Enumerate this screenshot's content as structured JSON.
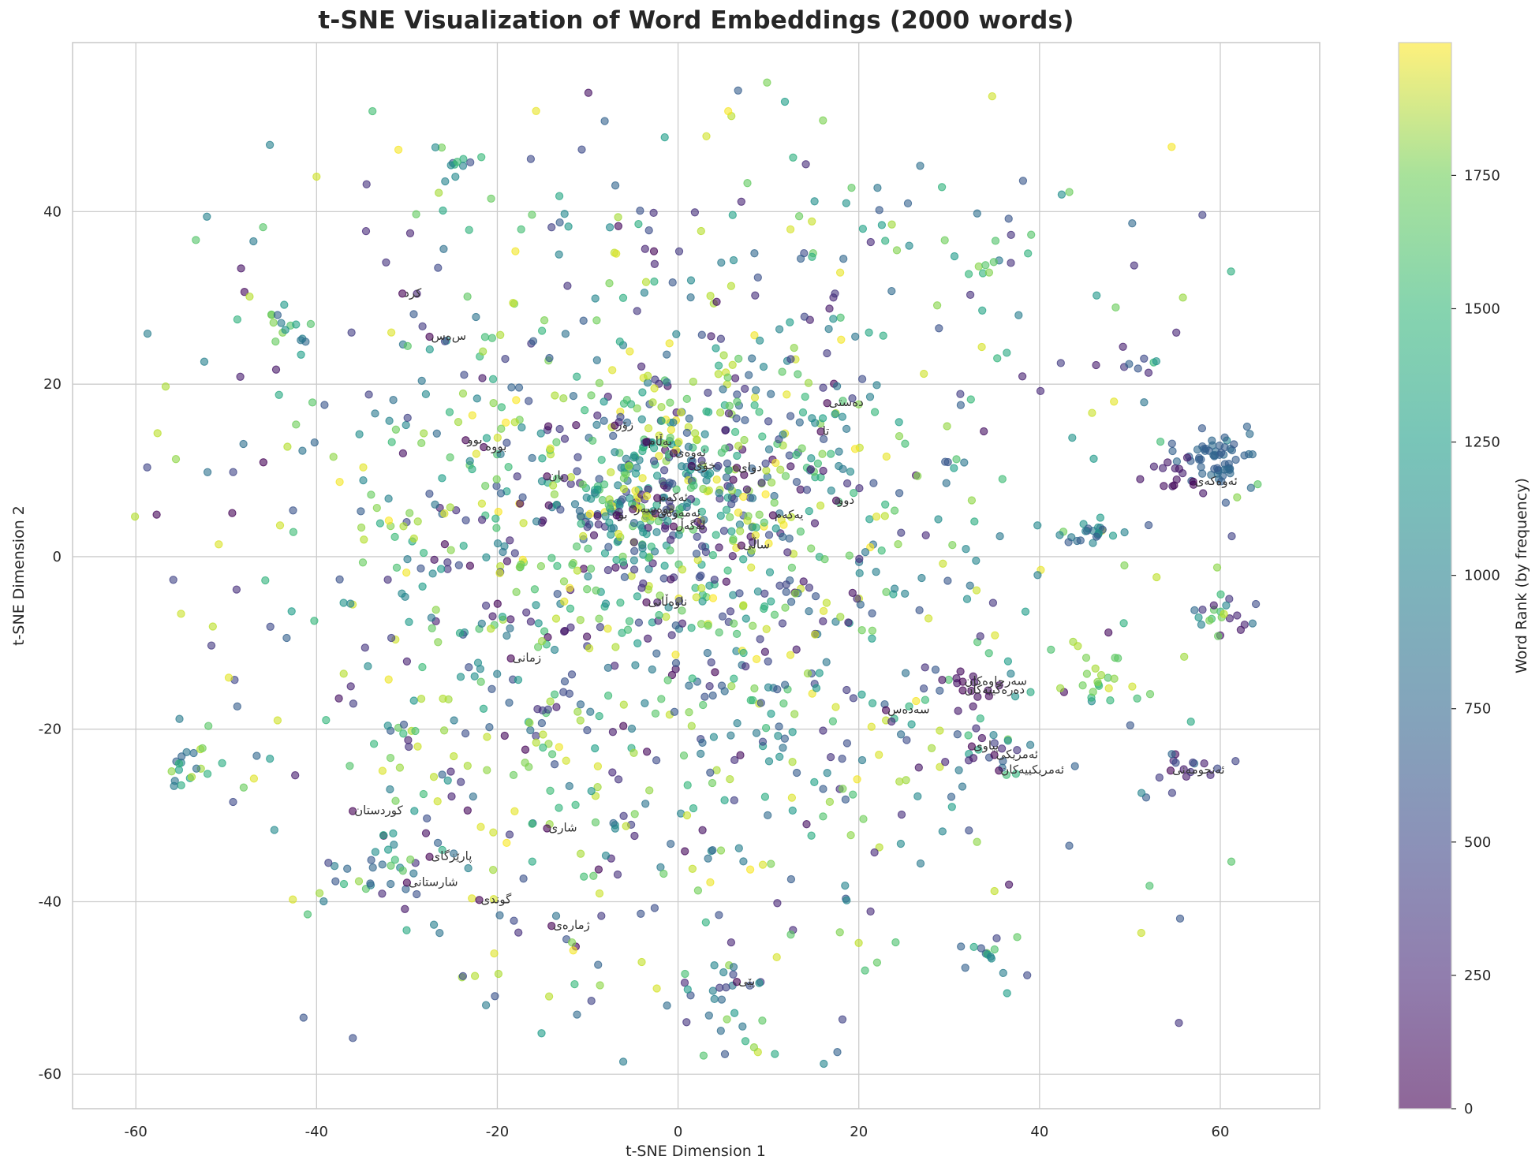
{
  "chart_data": {
    "type": "scatter",
    "title": "t-SNE Visualization of Word Embeddings (2000 words)",
    "xlabel": "t-SNE Dimension 1",
    "ylabel": "t-SNE Dimension 2",
    "xlim": [
      -67,
      71
    ],
    "ylim": [
      -64,
      59.6
    ],
    "xticks": [
      -60,
      -40,
      -20,
      0,
      20,
      40,
      60
    ],
    "yticks": [
      -60,
      -40,
      -20,
      0,
      20,
      40
    ],
    "grid": true,
    "n_points": 2000,
    "point_alpha": 0.6,
    "colormap": "viridis",
    "colorbar": {
      "label": "Word Rank (by frequency)",
      "range": [
        0,
        1999
      ],
      "ticks": [
        0,
        250,
        500,
        750,
        1000,
        1250,
        1500,
        1750
      ]
    },
    "clusters": [
      {
        "cx": 0,
        "cy": 8,
        "sx": 7,
        "sy": 7,
        "n": 320,
        "rank": [
          0,
          2000
        ]
      },
      {
        "cx": -5,
        "cy": 0,
        "sx": 22,
        "sy": 22,
        "n": 900,
        "rank": [
          0,
          2000
        ]
      },
      {
        "cx": 5,
        "cy": -5,
        "sx": 28,
        "sy": 28,
        "n": 420,
        "rank": [
          200,
          2000
        ]
      },
      {
        "cx": 59.5,
        "cy": 11,
        "sx": 1.6,
        "sy": 1.6,
        "n": 55,
        "rank": [
          550,
          700
        ]
      },
      {
        "cx": 55,
        "cy": 9,
        "sx": 1.6,
        "sy": 1.4,
        "n": 14,
        "rank": [
          20,
          200
        ]
      },
      {
        "cx": 60,
        "cy": -6,
        "sx": 2.2,
        "sy": 1.8,
        "n": 22,
        "rank": [
          100,
          1900
        ]
      },
      {
        "cx": 46,
        "cy": 2.5,
        "sx": 3,
        "sy": 1.3,
        "n": 22,
        "rank": [
          500,
          1100
        ]
      },
      {
        "cx": 46,
        "cy": -14,
        "sx": 2.2,
        "sy": 1.5,
        "n": 20,
        "rank": [
          1300,
          1900
        ]
      },
      {
        "cx": 56,
        "cy": -25,
        "sx": 1.8,
        "sy": 1.5,
        "n": 14,
        "rank": [
          50,
          700
        ]
      },
      {
        "cx": 34,
        "cy": -23,
        "sx": 2.4,
        "sy": 1.6,
        "n": 18,
        "rank": [
          50,
          1500
        ]
      },
      {
        "cx": 34,
        "cy": -46,
        "sx": 1.4,
        "sy": 1.0,
        "n": 12,
        "rank": [
          400,
          1600
        ]
      },
      {
        "cx": 6,
        "cy": -52,
        "sx": 2.2,
        "sy": 3,
        "n": 22,
        "rank": [
          300,
          1500
        ]
      },
      {
        "cx": -54,
        "cy": -23,
        "sx": 1.6,
        "sy": 2.2,
        "n": 20,
        "rank": [
          600,
          1900
        ]
      },
      {
        "cx": -34,
        "cy": -36,
        "sx": 3.5,
        "sy": 3,
        "n": 30,
        "rank": [
          100,
          1700
        ]
      },
      {
        "cx": -24,
        "cy": 45,
        "sx": 1.8,
        "sy": 1.4,
        "n": 12,
        "rank": [
          400,
          1700
        ]
      },
      {
        "cx": 34,
        "cy": 33.5,
        "sx": 1.4,
        "sy": 0.8,
        "n": 8,
        "rank": [
          500,
          1700
        ]
      },
      {
        "cx": 51,
        "cy": 22.5,
        "sx": 1.2,
        "sy": 0.5,
        "n": 6,
        "rank": [
          50,
          1900
        ]
      },
      {
        "cx": -44,
        "cy": 27,
        "sx": 2,
        "sy": 1.4,
        "n": 14,
        "rank": [
          600,
          1700
        ]
      },
      {
        "cx": 32,
        "cy": -15,
        "sx": 1.5,
        "sy": 1.3,
        "n": 12,
        "rank": [
          0,
          150
        ]
      }
    ],
    "labeled_words": [
      {
        "word": "کرد",
        "x": -30.5,
        "y": 30.5
      },
      {
        "word": "س‌ەس",
        "x": -27.5,
        "y": 25.5
      },
      {
        "word": "بوو",
        "x": -23.5,
        "y": 13.5
      },
      {
        "word": "بووە",
        "x": -21.5,
        "y": 12.7
      },
      {
        "word": "یان",
        "x": -14.5,
        "y": 9.3
      },
      {
        "word": "زۆر",
        "x": -7,
        "y": 15.2
      },
      {
        "word": "بەڵام",
        "x": -3.5,
        "y": 13.3
      },
      {
        "word": "ئەوەی",
        "x": -0.5,
        "y": 12.0
      },
      {
        "word": "خۆی",
        "x": 1.5,
        "y": 10.5
      },
      {
        "word": "دوای",
        "x": 6.5,
        "y": 10.3
      },
      {
        "word": "دەستی",
        "x": 16.5,
        "y": 17.8
      },
      {
        "word": "تا",
        "x": 15.8,
        "y": 14.5
      },
      {
        "word": "ئەکەم",
        "x": -2.3,
        "y": 6.8
      },
      {
        "word": "ەوەسەر",
        "x": -5,
        "y": 5.5
      },
      {
        "word": "ئەمەوەی",
        "x": -2.5,
        "y": 5.0
      },
      {
        "word": "بۆ",
        "x": -6.8,
        "y": 4.8
      },
      {
        "word": "لەگەڵ",
        "x": -0.5,
        "y": 3.5
      },
      {
        "word": "یەکەم",
        "x": 10.5,
        "y": 4.8
      },
      {
        "word": "دوو",
        "x": 17.5,
        "y": 6.5
      },
      {
        "word": "ساڵی",
        "x": 7,
        "y": 1.3
      },
      {
        "word": "ناوەڵاتی",
        "x": -3.5,
        "y": -5.3
      },
      {
        "word": "زمانی",
        "x": -18.5,
        "y": -11.8
      },
      {
        "word": "سەرچاوەکان",
        "x": 31.5,
        "y": -14.5
      },
      {
        "word": "دەرەکییەکان",
        "x": 31.5,
        "y": -15.5
      },
      {
        "word": "سەدەس",
        "x": 23,
        "y": -17.8
      },
      {
        "word": "پیاوی",
        "x": 32.5,
        "y": -22
      },
      {
        "word": "ئەمریکی",
        "x": 35,
        "y": -23
      },
      {
        "word": "ئەمریکییەکان",
        "x": 35.5,
        "y": -24.8
      },
      {
        "word": "ئەنجومەنی",
        "x": 54.5,
        "y": -24.8
      },
      {
        "word": "ئەوەکەی",
        "x": 57,
        "y": 8.7
      },
      {
        "word": "کوردستان",
        "x": -36,
        "y": -29.5
      },
      {
        "word": "شاری",
        "x": -14.5,
        "y": -31.5
      },
      {
        "word": "پارێزگای",
        "x": -27.5,
        "y": -34.8
      },
      {
        "word": "شارستانی",
        "x": -30,
        "y": -37.8
      },
      {
        "word": "گوندی",
        "x": -22,
        "y": -39.8
      },
      {
        "word": "ژمارەی",
        "x": -14,
        "y": -42.8
      },
      {
        "word": "پێی",
        "x": 6.5,
        "y": -49.3
      }
    ]
  },
  "colorbar": {
    "label": "Word Rank (by frequency)",
    "tick_labels": [
      "0",
      "250",
      "500",
      "750",
      "1000",
      "1250",
      "1500",
      "1750"
    ]
  }
}
